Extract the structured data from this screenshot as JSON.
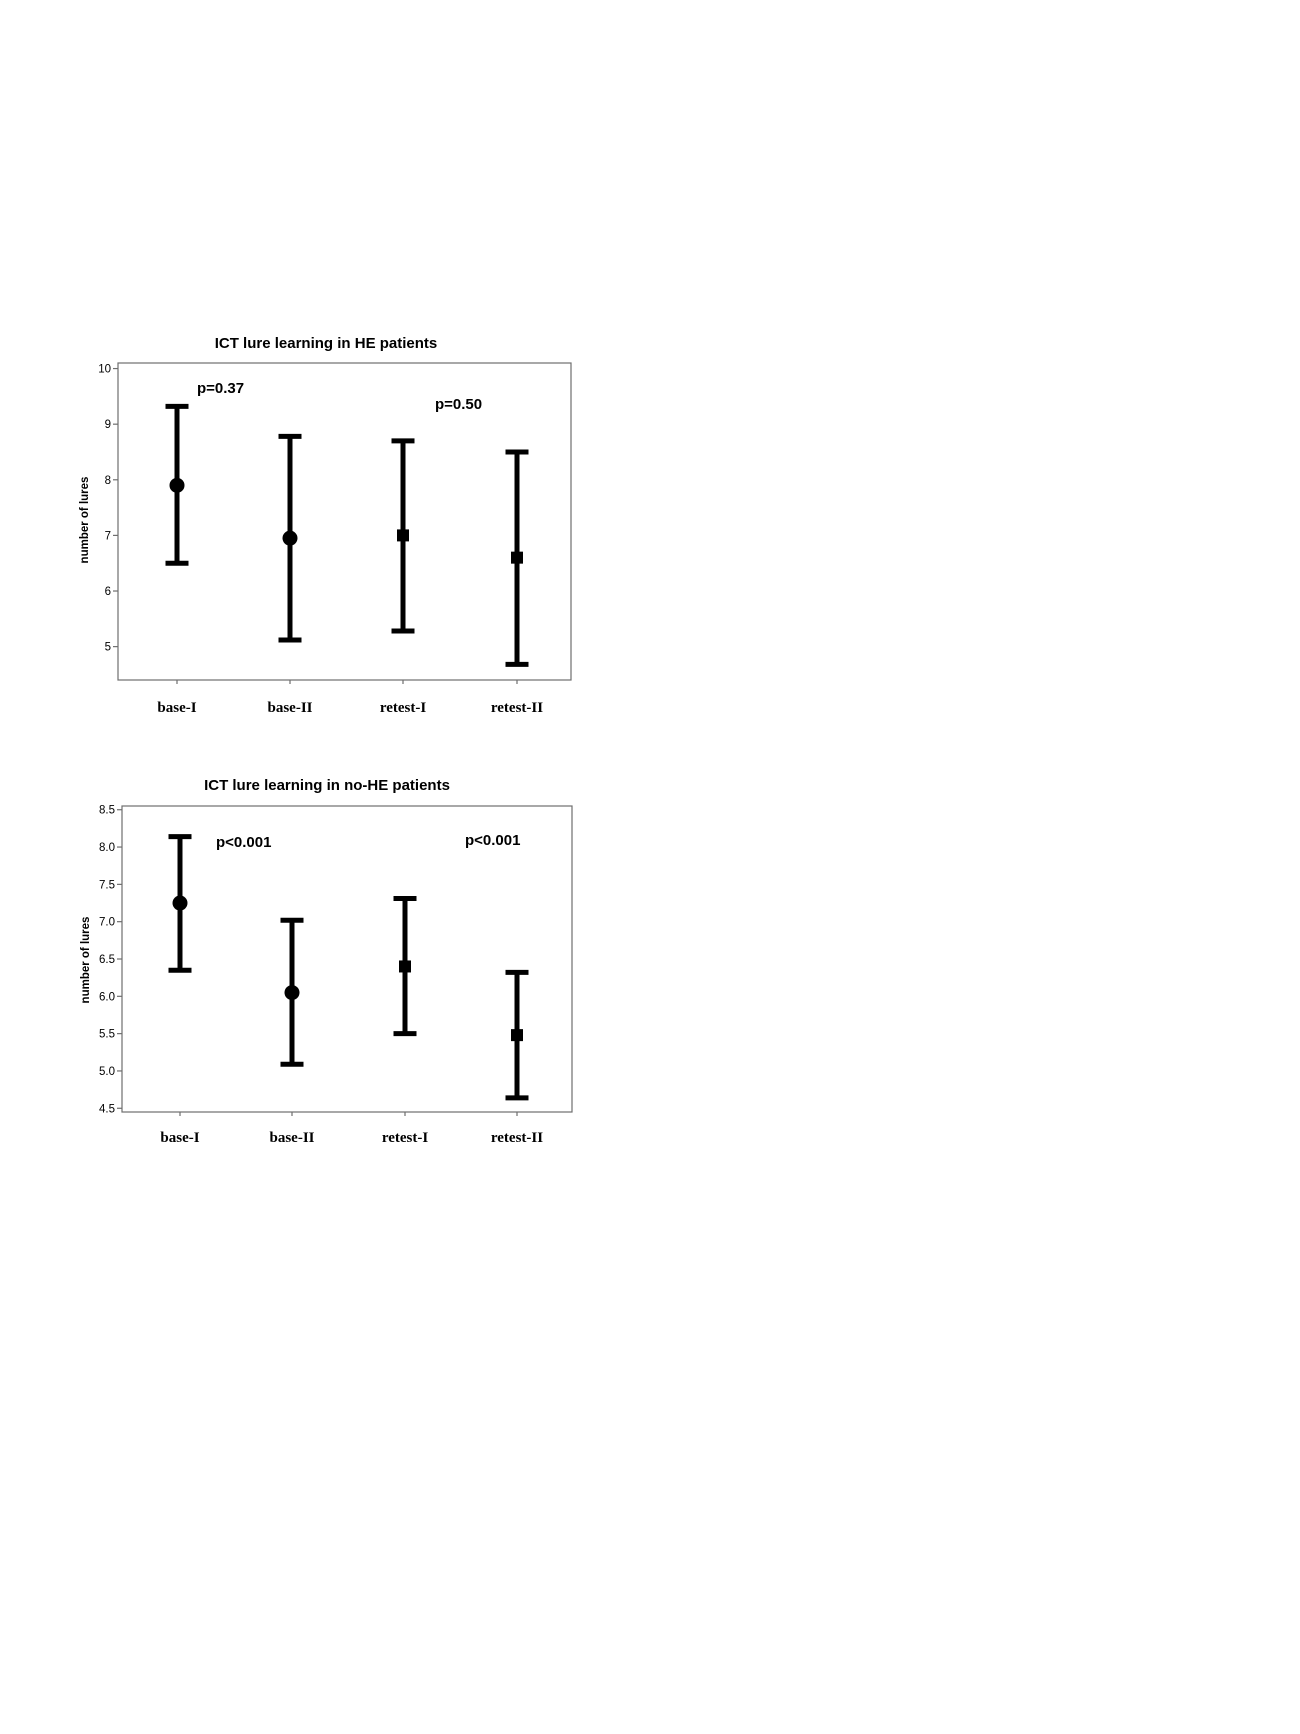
{
  "chart_data": [
    {
      "type": "errorbar",
      "title": "ICT lure learning in HE patients",
      "ylabel": "number of lures",
      "xlabel": "",
      "categories": [
        "base-I",
        "base-II",
        "retest-I",
        "retest-II"
      ],
      "markers": [
        "circle",
        "circle",
        "square",
        "square"
      ],
      "mean": [
        7.9,
        6.95,
        7.0,
        6.6
      ],
      "lower": [
        6.5,
        5.12,
        5.28,
        4.68
      ],
      "upper": [
        9.32,
        8.78,
        8.7,
        8.5
      ],
      "ylim": [
        4.4,
        10.1
      ],
      "yticks": [
        5,
        6,
        7,
        8,
        9,
        10
      ],
      "ytick_labels": [
        "5",
        "6",
        "7",
        "8",
        "9",
        "10"
      ],
      "grid": false,
      "annotations": [
        "p=0.37",
        "p=0.50"
      ]
    },
    {
      "type": "errorbar",
      "title": "ICT lure learning in no-HE patients",
      "ylabel": "number of lures",
      "xlabel": "",
      "categories": [
        "base-I",
        "base-II",
        "retest-I",
        "retest-II"
      ],
      "markers": [
        "circle",
        "circle",
        "square",
        "square"
      ],
      "mean": [
        7.25,
        6.05,
        6.4,
        5.48
      ],
      "lower": [
        6.35,
        5.09,
        5.5,
        4.64
      ],
      "upper": [
        8.14,
        7.02,
        7.31,
        6.32
      ],
      "ylim": [
        4.45,
        8.55
      ],
      "yticks": [
        4.5,
        5.0,
        5.5,
        6.0,
        6.5,
        7.0,
        7.5,
        8.0,
        8.5
      ],
      "ytick_labels": [
        "4.5",
        "5.0",
        "5.5",
        "6.0",
        "6.5",
        "7.0",
        "7.5",
        "8.0",
        "8.5"
      ],
      "grid": false,
      "annotations": [
        "p<0.001",
        "p<0.001"
      ]
    }
  ]
}
